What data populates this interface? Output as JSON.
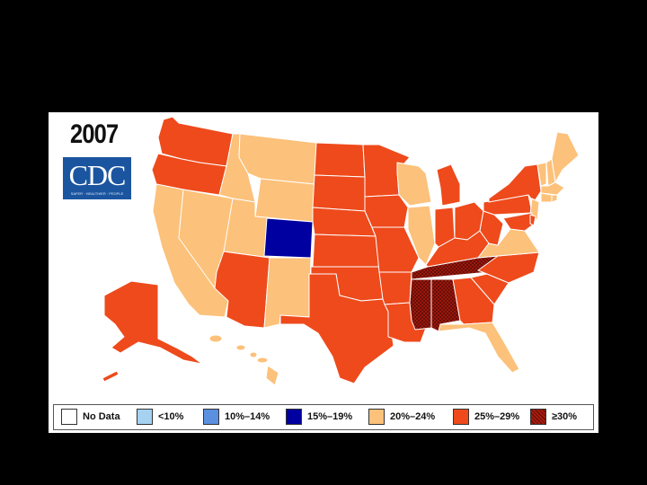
{
  "title": "2007",
  "logo": {
    "text": "CDC",
    "tagline": "SAFER · HEALTHIER · PEOPLE"
  },
  "colors": {
    "no_data": "#ffffff",
    "lt10": "#a6d2f2",
    "b10_14": "#5b8fe0",
    "b15_19": "#0000a0",
    "b20_24": "#fcc17a",
    "b25_29": "#ee4a1c",
    "ge30": "#a81c10"
  },
  "legend": [
    {
      "label": "No Data",
      "color_key": "no_data"
    },
    {
      "label": "<10%",
      "color_key": "lt10"
    },
    {
      "label": "10%–14%",
      "color_key": "b10_14"
    },
    {
      "label": "15%–19%",
      "color_key": "b15_19"
    },
    {
      "label": "20%–24%",
      "color_key": "b20_24"
    },
    {
      "label": "25%–29%",
      "color_key": "b25_29"
    },
    {
      "label": "≥30%",
      "color_key": "ge30"
    }
  ],
  "states": {
    "WA": "b25_29",
    "OR": "b25_29",
    "CA": "b20_24",
    "NV": "b20_24",
    "ID": "b20_24",
    "MT": "b20_24",
    "WY": "b20_24",
    "UT": "b20_24",
    "AZ": "b25_29",
    "CO": "b15_19",
    "NM": "b20_24",
    "ND": "b25_29",
    "SD": "b25_29",
    "NE": "b25_29",
    "KS": "b25_29",
    "OK": "b25_29",
    "TX": "b25_29",
    "MN": "b25_29",
    "IA": "b25_29",
    "MO": "b25_29",
    "AR": "b25_29",
    "LA": "b25_29",
    "WI": "b20_24",
    "IL": "b20_24",
    "MI": "b25_29",
    "IN": "b25_29",
    "OH": "b25_29",
    "KY": "b25_29",
    "TN": "ge30",
    "MS": "ge30",
    "AL": "ge30",
    "GA": "b25_29",
    "FL": "b20_24",
    "SC": "b25_29",
    "NC": "b25_29",
    "VA": "b20_24",
    "WV": "b25_29",
    "PA": "b25_29",
    "NY": "b25_29",
    "NJ": "b20_24",
    "DE": "b25_29",
    "MD": "b25_29",
    "VT": "b20_24",
    "NH": "b20_24",
    "ME": "b20_24",
    "MA": "b20_24",
    "CT": "b20_24",
    "RI": "b20_24",
    "AK": "b25_29",
    "HI": "b20_24"
  }
}
